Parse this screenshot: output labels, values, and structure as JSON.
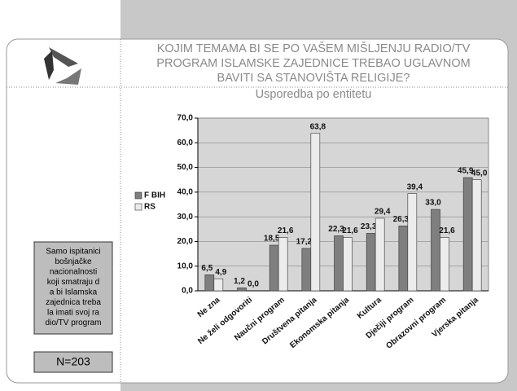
{
  "title_lines": [
    "KOJIM TEMAMA BI SE PO VAŠEM MIŠLJENJU RADIO/TV",
    "PROGRAM ISLAMSKE ZAJEDNICE TREBAO UGLAVNOM",
    "BAVITI  SA STANOVIŠTA RELIGIJE?"
  ],
  "note_lines": [
    "Samo ispitanici",
    "bošnjačke",
    "nacionalnosti",
    "koji smatraju d",
    "a bi Islamska",
    "zajednica treba",
    "la imati svoj ra",
    "dio/TV program"
  ],
  "sample": "N=203",
  "chart_data": {
    "type": "bar",
    "title": "Usporedba po entitetu",
    "categories": [
      "Ne zna",
      "Ne želi odgovoriti",
      "Naučni program",
      "Društvena pitanja",
      "Ekonomska pitanja",
      "Kultura",
      "Dječiji program",
      "Obrazovni program",
      "Vjerska pitanja"
    ],
    "series": [
      {
        "name": "F BIH",
        "color": "#7f7f7f",
        "values": [
          6.5,
          1.2,
          18.5,
          17.2,
          22.3,
          23.3,
          26.3,
          33.0,
          45.9
        ],
        "value_labels": [
          "6,5",
          "1,2",
          "18,5",
          "17,2",
          "22,3",
          "23,3",
          "26,3",
          "33,0",
          "45,9"
        ]
      },
      {
        "name": "RS",
        "color": "#ececec",
        "values": [
          4.9,
          0.0,
          21.6,
          63.8,
          21.6,
          29.4,
          39.4,
          21.6,
          45.0
        ],
        "value_labels": [
          "4,9",
          "0,0",
          "21,6",
          "63,8",
          "21,6",
          "29,4",
          "39,4",
          "21,6",
          "45,0"
        ]
      }
    ],
    "ylim": [
      0,
      70
    ],
    "yticks": [
      {
        "value": 0,
        "label": "0,0"
      },
      {
        "value": 10,
        "label": "10,0"
      },
      {
        "value": 20,
        "label": "20,0"
      },
      {
        "value": 30,
        "label": "30,0"
      },
      {
        "value": 40,
        "label": "40,0"
      },
      {
        "value": 50,
        "label": "50,0"
      },
      {
        "value": 60,
        "label": "60,0"
      },
      {
        "value": 70,
        "label": "70,0"
      }
    ],
    "grid": true,
    "legend": "left"
  }
}
